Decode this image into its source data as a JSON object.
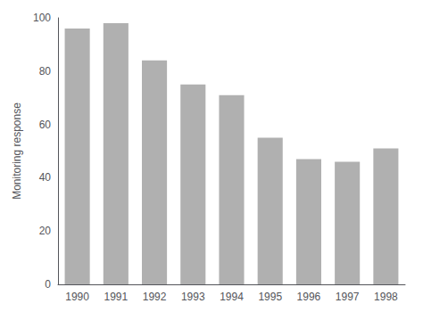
{
  "chart_data": {
    "type": "bar",
    "categories": [
      "1990",
      "1991",
      "1992",
      "1993",
      "1994",
      "1995",
      "1996",
      "1997",
      "1998"
    ],
    "values": [
      96,
      98,
      84,
      75,
      71,
      55,
      47,
      46,
      51
    ],
    "color": "#b0b0b0",
    "ylabel": "Monitoring response",
    "ylim": [
      0,
      100
    ],
    "yticks": [
      0,
      20,
      40,
      60,
      80,
      100
    ],
    "grid": false
  }
}
